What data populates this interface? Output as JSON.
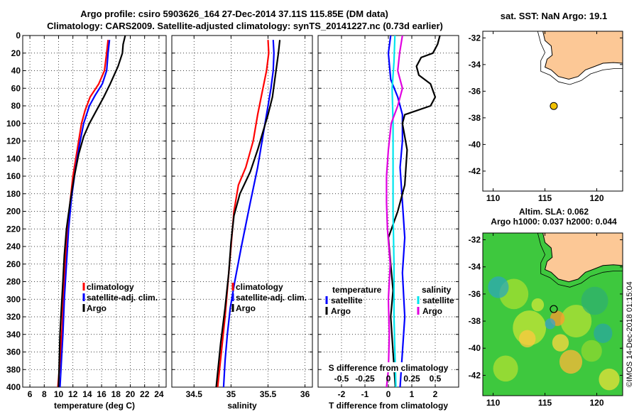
{
  "titles": {
    "line1": "Argo profile: csiro 5903626_164 27-Dec-2014 37.11S 115.85E (DM data)",
    "line2": "Climatology: CARS2009. Satellite-adjusted climatology: synTS_20141227.nc (0.73d earlier)",
    "sst": "sat. SST: NaN Argo: 19.1",
    "alt1": "Altim. SLA: 0.062",
    "alt2": "Argo h1000: 0.037 h2000: 0.044",
    "watermark": "©IMOS 14-Dec-2018 01:15:04"
  },
  "colors": {
    "climatology": "#ff0000",
    "satellite": "#0000ff",
    "argo": "#000000",
    "sat_s": "#00e5ee",
    "argo_s": "#e000e0",
    "land": "#fcc896",
    "coast": "#000000"
  },
  "chart_data": [
    {
      "id": "temperature",
      "type": "line",
      "xlabel": "temperature (deg C)",
      "ylabel": "depth (m)",
      "xlim": [
        5,
        25
      ],
      "ylim": [
        400,
        0
      ],
      "xticks": [
        "6",
        "8",
        "10",
        "12",
        "14",
        "16",
        "18",
        "20",
        "22",
        "24"
      ],
      "xtick_values": [
        6,
        8,
        10,
        12,
        14,
        16,
        18,
        20,
        22,
        24
      ],
      "yticks": [
        "0",
        "20",
        "40",
        "60",
        "80",
        "100",
        "120",
        "140",
        "160",
        "180",
        "200",
        "220",
        "240",
        "260",
        "280",
        "300",
        "320",
        "340",
        "360",
        "380",
        "400"
      ],
      "ytick_values": [
        0,
        20,
        40,
        60,
        80,
        100,
        120,
        140,
        160,
        180,
        200,
        220,
        240,
        260,
        280,
        300,
        320,
        340,
        360,
        380,
        400
      ],
      "legend": [
        "climatology",
        "satellite-adj. clim.",
        "Argo"
      ],
      "series": [
        {
          "name": "climatology",
          "color": "#ff0000",
          "points": [
            [
              16.9,
              5
            ],
            [
              16.7,
              20
            ],
            [
              16.4,
              40
            ],
            [
              15.6,
              55
            ],
            [
              14.4,
              70
            ],
            [
              13.7,
              85
            ],
            [
              13.2,
              100
            ],
            [
              12.6,
              130
            ],
            [
              12.0,
              160
            ],
            [
              11.6,
              190
            ],
            [
              11.3,
              220
            ],
            [
              11.0,
              250
            ],
            [
              10.7,
              290
            ],
            [
              10.5,
              330
            ],
            [
              10.2,
              370
            ],
            [
              9.9,
              400
            ]
          ]
        },
        {
          "name": "satellite-adj. clim.",
          "color": "#0000ff",
          "points": [
            [
              17.1,
              5
            ],
            [
              16.9,
              20
            ],
            [
              16.7,
              40
            ],
            [
              16.1,
              55
            ],
            [
              15.1,
              68
            ],
            [
              14.3,
              80
            ],
            [
              13.5,
              100
            ],
            [
              12.9,
              125
            ],
            [
              12.3,
              155
            ],
            [
              11.8,
              185
            ],
            [
              11.4,
              220
            ],
            [
              11.1,
              260
            ],
            [
              10.8,
              300
            ],
            [
              10.6,
              340
            ],
            [
              10.4,
              370
            ],
            [
              10.2,
              400
            ]
          ]
        },
        {
          "name": "Argo",
          "color": "#000000",
          "points": [
            [
              19.3,
              0
            ],
            [
              19.0,
              10
            ],
            [
              18.9,
              20
            ],
            [
              18.3,
              35
            ],
            [
              17.2,
              55
            ],
            [
              16.3,
              70
            ],
            [
              15.3,
              85
            ],
            [
              14.3,
              100
            ],
            [
              13.5,
              115
            ],
            [
              12.8,
              135
            ],
            [
              12.2,
              160
            ],
            [
              11.6,
              190
            ],
            [
              11.1,
              220
            ],
            [
              10.8,
              250
            ],
            [
              10.6,
              280
            ],
            [
              10.4,
              310
            ],
            [
              10.2,
              340
            ],
            [
              10.1,
              370
            ],
            [
              10.0,
              400
            ]
          ]
        }
      ]
    },
    {
      "id": "salinity",
      "type": "line",
      "xlabel": "salinity",
      "ylabel": "depth (m)",
      "xlim": [
        34.2,
        36.1
      ],
      "ylim": [
        400,
        0
      ],
      "xticks": [
        "34.5",
        "35",
        "35.5",
        "36"
      ],
      "xtick_values": [
        34.5,
        35,
        35.5,
        36
      ],
      "legend": [
        "climatology",
        "satellite-adj. clim.",
        "Argo"
      ],
      "series": [
        {
          "name": "climatology",
          "color": "#ff0000",
          "points": [
            [
              35.5,
              5
            ],
            [
              35.51,
              20
            ],
            [
              35.48,
              40
            ],
            [
              35.42,
              65
            ],
            [
              35.36,
              90
            ],
            [
              35.3,
              120
            ],
            [
              35.2,
              150
            ],
            [
              35.1,
              170
            ],
            [
              35.04,
              200
            ],
            [
              35.0,
              240
            ],
            [
              34.96,
              280
            ],
            [
              34.92,
              320
            ],
            [
              34.87,
              360
            ],
            [
              34.82,
              400
            ]
          ]
        },
        {
          "name": "satellite-adj. clim.",
          "color": "#0000ff",
          "points": [
            [
              35.57,
              5
            ],
            [
              35.58,
              20
            ],
            [
              35.57,
              40
            ],
            [
              35.54,
              60
            ],
            [
              35.5,
              80
            ],
            [
              35.44,
              110
            ],
            [
              35.36,
              150
            ],
            [
              35.26,
              190
            ],
            [
              35.14,
              240
            ],
            [
              35.05,
              280
            ],
            [
              34.99,
              310
            ],
            [
              34.95,
              340
            ],
            [
              34.92,
              370
            ],
            [
              34.9,
              400
            ]
          ]
        },
        {
          "name": "Argo",
          "color": "#000000",
          "points": [
            [
              35.66,
              5
            ],
            [
              35.64,
              20
            ],
            [
              35.6,
              45
            ],
            [
              35.56,
              70
            ],
            [
              35.5,
              90
            ],
            [
              35.43,
              110
            ],
            [
              35.36,
              130
            ],
            [
              35.26,
              155
            ],
            [
              35.12,
              180
            ],
            [
              35.04,
              205
            ],
            [
              35.0,
              235
            ],
            [
              34.97,
              270
            ],
            [
              34.92,
              310
            ],
            [
              34.86,
              350
            ],
            [
              34.8,
              400
            ]
          ]
        }
      ]
    },
    {
      "id": "difference",
      "type": "line",
      "xlabel": "T difference from climatology",
      "x2label": "S difference from climatology",
      "xlim": [
        -3,
        3
      ],
      "x2lim": [
        -0.75,
        0.75
      ],
      "ylim": [
        400,
        0
      ],
      "xticks": [
        "-2",
        "-1",
        "0",
        "1",
        "2"
      ],
      "xtick_values": [
        -2,
        -1,
        0,
        1,
        2
      ],
      "x2ticks": [
        "-0.5",
        "-0.25",
        "0",
        "0.25",
        "0.5"
      ],
      "x2tick_values": [
        -0.5,
        -0.25,
        0,
        0.25,
        0.5
      ],
      "legend_left_title": "temperature",
      "legend_right_title": "salinity",
      "legend_left": [
        "satellite",
        "Argo"
      ],
      "legend_right": [
        "satellite",
        "Argo"
      ],
      "series": [
        {
          "name": "T satellite",
          "color": "#0000ff",
          "points": [
            [
              0.1,
              0
            ],
            [
              0.0,
              20
            ],
            [
              0.1,
              50
            ],
            [
              0.4,
              70
            ],
            [
              0.6,
              90
            ],
            [
              0.6,
              120
            ],
            [
              0.5,
              150
            ],
            [
              0.6,
              190
            ],
            [
              0.7,
              230
            ],
            [
              0.6,
              270
            ],
            [
              0.7,
              320
            ],
            [
              0.6,
              360
            ],
            [
              0.5,
              400
            ]
          ]
        },
        {
          "name": "T Argo",
          "color": "#000000",
          "points": [
            [
              2.2,
              0
            ],
            [
              2.1,
              10
            ],
            [
              1.9,
              20
            ],
            [
              1.4,
              25
            ],
            [
              1.2,
              35
            ],
            [
              1.3,
              45
            ],
            [
              1.8,
              55
            ],
            [
              2.0,
              70
            ],
            [
              1.8,
              80
            ],
            [
              0.7,
              90
            ],
            [
              0.6,
              100
            ],
            [
              0.8,
              130
            ],
            [
              0.7,
              170
            ],
            [
              0.4,
              200
            ],
            [
              0.0,
              230
            ],
            [
              0.1,
              260
            ],
            [
              0.2,
              290
            ],
            [
              0.1,
              320
            ],
            [
              0.2,
              360
            ],
            [
              0.3,
              400
            ]
          ]
        },
        {
          "name": "S satellite",
          "color": "#00e5ee",
          "points": [
            [
              0.07,
              0
            ],
            [
              0.06,
              30
            ],
            [
              0.04,
              60
            ],
            [
              0.05,
              100
            ],
            [
              0.05,
              140
            ],
            [
              0.05,
              200
            ],
            [
              0.06,
              260
            ],
            [
              0.06,
              320
            ],
            [
              0.07,
              360
            ],
            [
              0.08,
              400
            ]
          ]
        },
        {
          "name": "S Argo",
          "color": "#e000e0",
          "points": [
            [
              0.15,
              0
            ],
            [
              0.12,
              20
            ],
            [
              0.1,
              40
            ],
            [
              0.15,
              60
            ],
            [
              0.1,
              80
            ],
            [
              0.03,
              100
            ],
            [
              0.0,
              130
            ],
            [
              -0.02,
              160
            ],
            [
              -0.02,
              190
            ],
            [
              -0.01,
              220
            ],
            [
              0.02,
              260
            ],
            [
              0.0,
              300
            ],
            [
              0.01,
              340
            ],
            [
              0.0,
              380
            ],
            [
              -0.02,
              400
            ]
          ]
        }
      ]
    },
    {
      "id": "sst_map",
      "type": "scatter",
      "xlim": [
        109,
        122.5
      ],
      "ylim": [
        -43.5,
        -31.5
      ],
      "xticks": [
        "110",
        "115",
        "120"
      ],
      "xtick_values": [
        110,
        115,
        120
      ],
      "yticks": [
        "-32",
        "-34",
        "-36",
        "-38",
        "-40",
        "-42"
      ],
      "ytick_values": [
        -32,
        -34,
        -36,
        -38,
        -40,
        -42
      ],
      "point": {
        "lon": 115.85,
        "lat": -37.11
      }
    },
    {
      "id": "altimetry_map",
      "type": "heatmap",
      "xlim": [
        109,
        122.5
      ],
      "ylim": [
        -43.5,
        -31.5
      ],
      "xticks": [
        "110",
        "115",
        "120"
      ],
      "xtick_values": [
        110,
        115,
        120
      ],
      "yticks": [
        "-32",
        "-34",
        "-36",
        "-38",
        "-40",
        "-42"
      ],
      "ytick_values": [
        -32,
        -34,
        -36,
        -38,
        -40,
        -42
      ],
      "point": {
        "lon": 115.85,
        "lat": -37.11
      }
    }
  ]
}
